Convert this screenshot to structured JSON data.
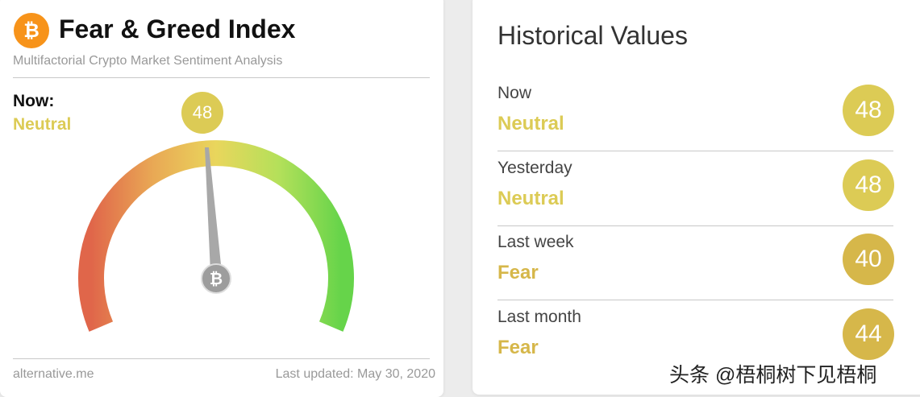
{
  "header": {
    "title": "Fear & Greed Index",
    "subtitle": "Multifactorial Crypto Market Sentiment Analysis"
  },
  "now": {
    "label": "Now:",
    "status": "Neutral",
    "value": 48,
    "color": "#dccb55"
  },
  "footer": {
    "source": "alternative.me",
    "updated": "Last updated: May 30, 2020"
  },
  "historical": {
    "title": "Historical Values",
    "rows": [
      {
        "label": "Now",
        "status": "Neutral",
        "value": 48,
        "color": "#dccb55"
      },
      {
        "label": "Yesterday",
        "status": "Neutral",
        "value": 48,
        "color": "#dccb55"
      },
      {
        "label": "Last week",
        "status": "Fear",
        "value": 40,
        "color": "#d6b74a"
      },
      {
        "label": "Last month",
        "status": "Fear",
        "value": 44,
        "color": "#d6b74a"
      }
    ]
  },
  "watermark": "头条 @梧桐树下见梧桐"
}
